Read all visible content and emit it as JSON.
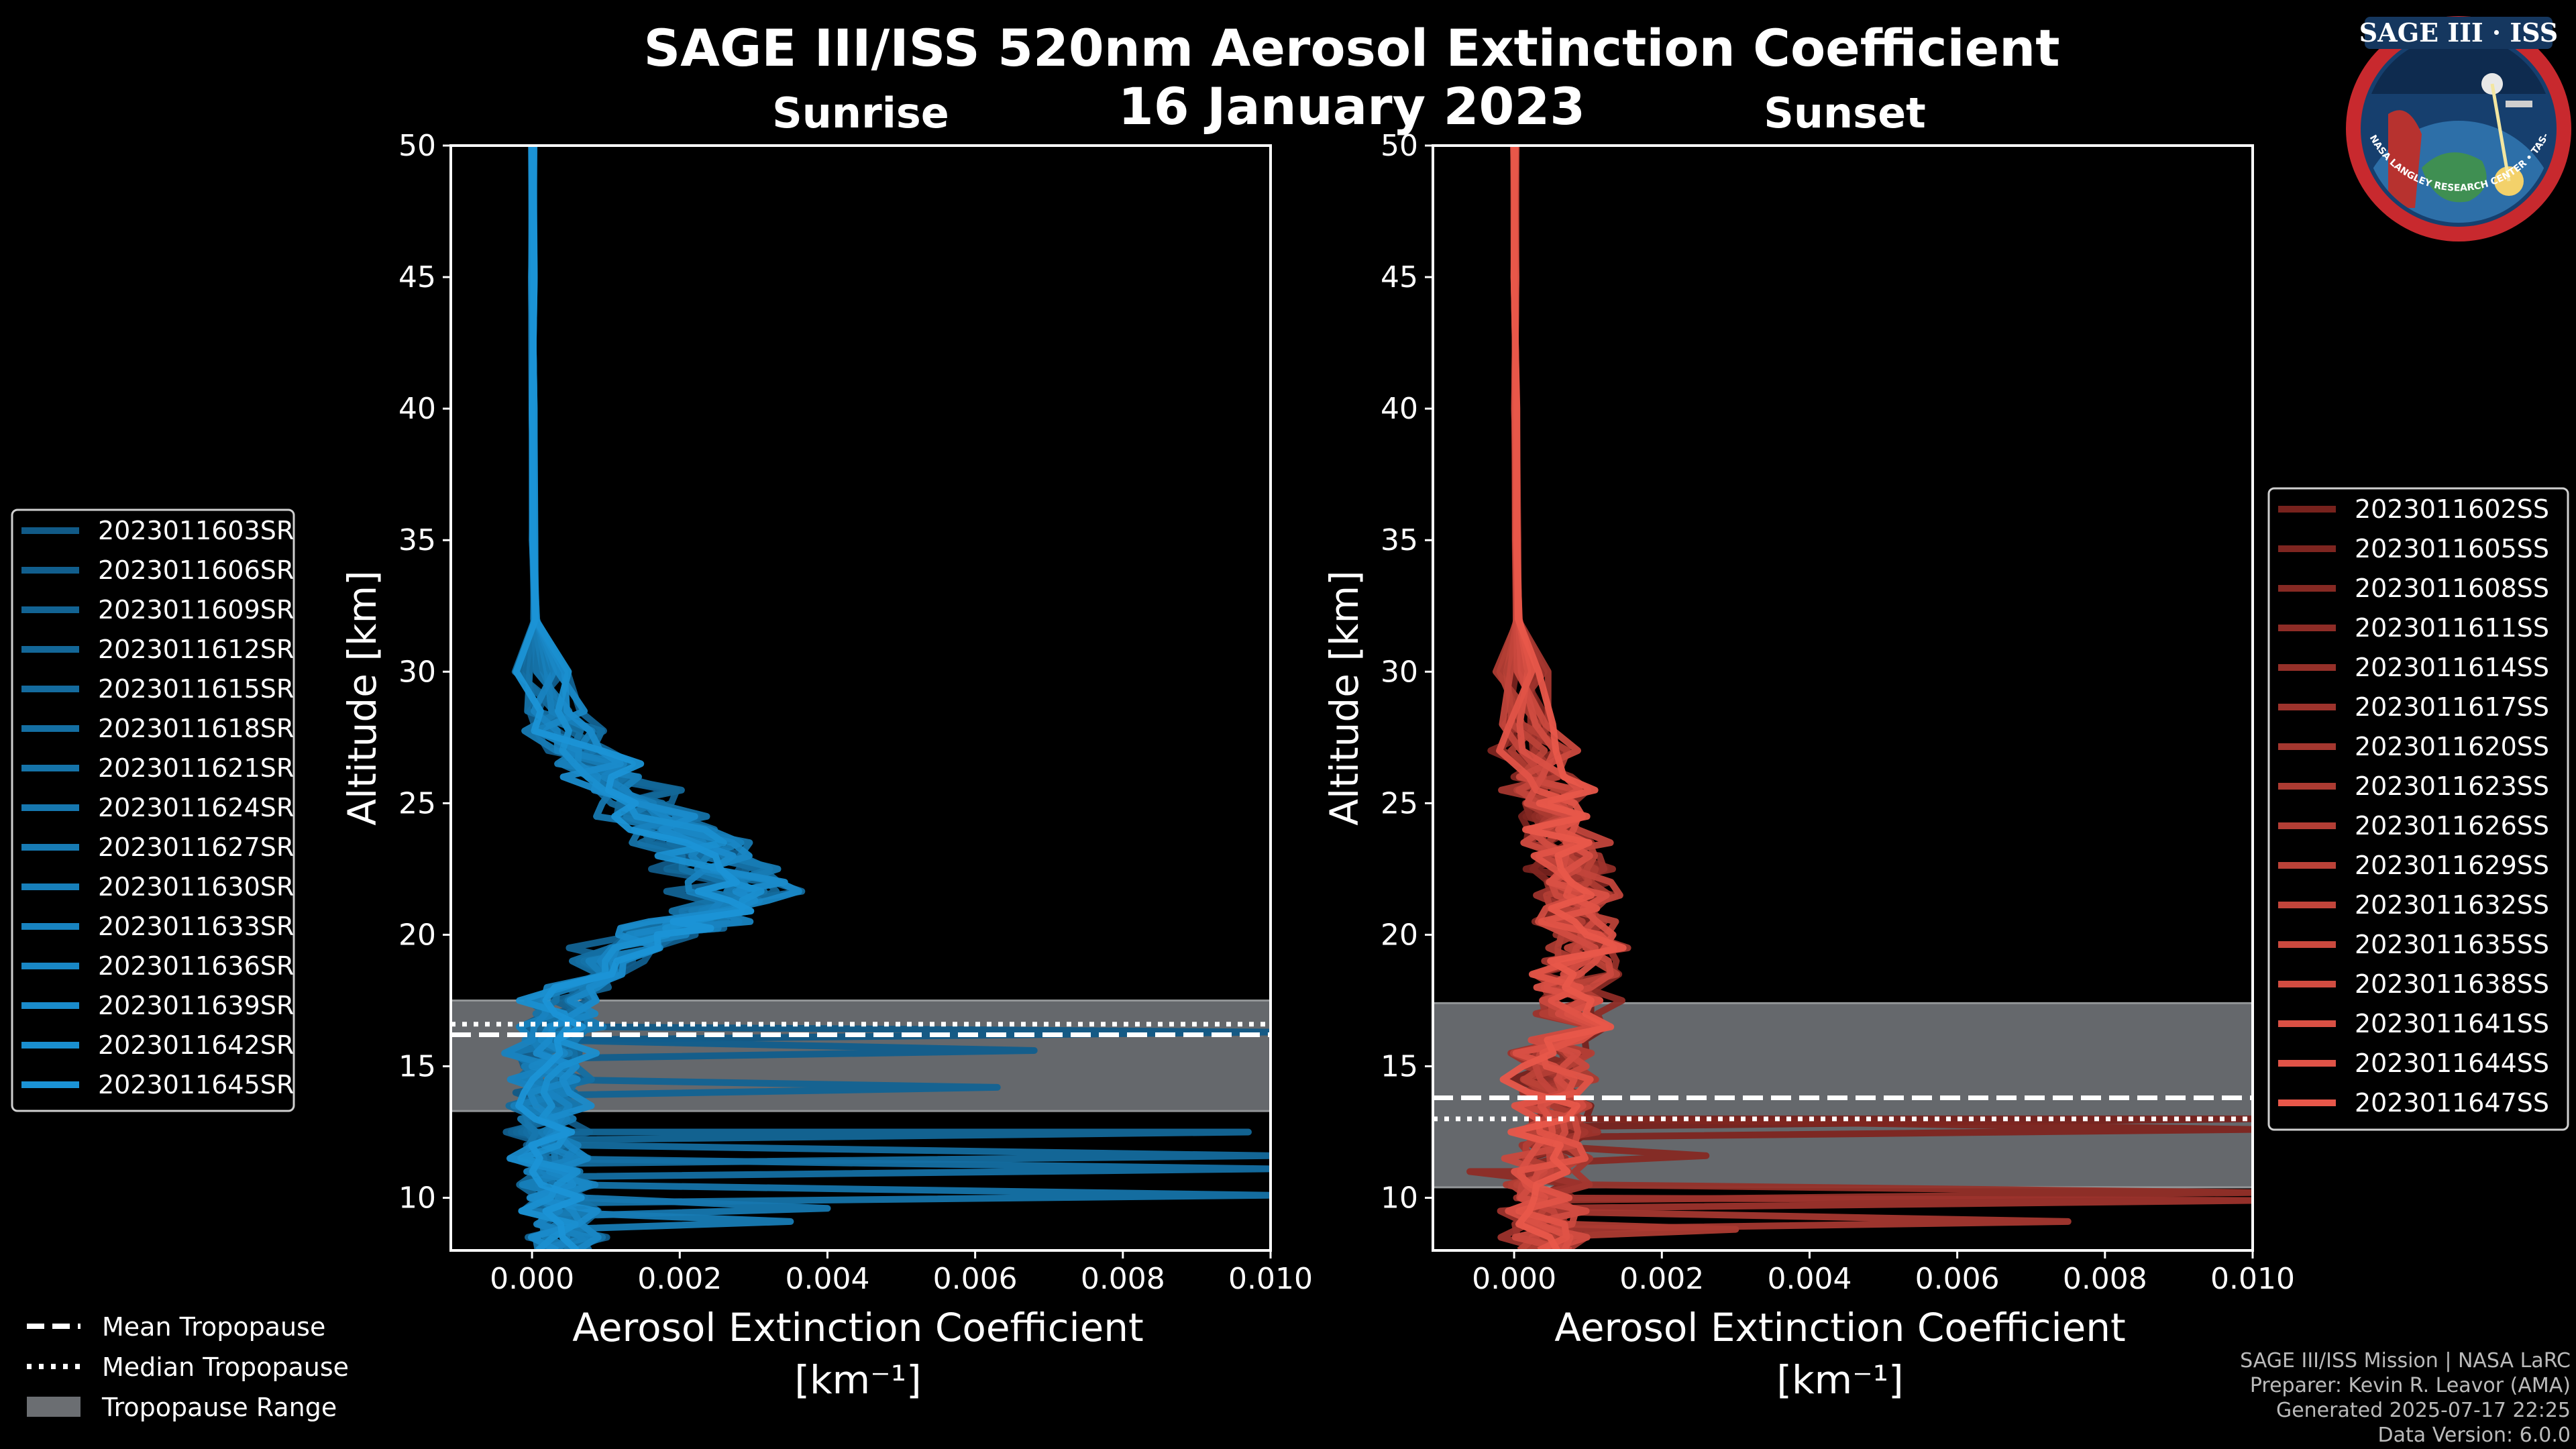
{
  "title_line1": "SAGE III/ISS 520nm Aerosol Extinction Coefficient",
  "title_line2": "16 January 2023",
  "logo": {
    "text": "SAGE III · ISS",
    "ring_text": "BALL • NASA LANGLEY RESEARCH CENTER • TAS-I • ESA"
  },
  "credits": [
    "SAGE III/ISS Mission | NASA LaRC",
    "Preparer: Kevin R. Leavor (AMA)",
    "Generated 2025-07-17 22:25",
    "Data Version: 6.0.0"
  ],
  "tropopause_legend": [
    {
      "label": "Mean Tropopause",
      "style": "dashed"
    },
    {
      "label": "Median Tropopause",
      "style": "dotted"
    },
    {
      "label": "Tropopause Range",
      "style": "band"
    }
  ],
  "chart_data": [
    {
      "type": "line",
      "title": "Sunrise",
      "xlabel": "Aerosol Extinction Coefficient",
      "xunit": "[km⁻¹]",
      "ylabel": "Altitude [km]",
      "xlim": [
        -0.0011,
        0.01
      ],
      "ylim": [
        8,
        50
      ],
      "xticks": [
        0.0,
        0.002,
        0.004,
        0.006,
        0.008,
        0.01
      ],
      "xtick_labels": [
        "0.000",
        "0.002",
        "0.004",
        "0.006",
        "0.008",
        "0.010"
      ],
      "yticks": [
        10,
        15,
        20,
        25,
        30,
        35,
        40,
        45,
        50
      ],
      "tropopause": {
        "mean": 16.2,
        "median": 16.6,
        "range": [
          13.3,
          17.5
        ]
      },
      "color_dark": "#0b3c5d",
      "color_light": "#1b93d6",
      "series": [
        {
          "name": "2023011603SR"
        },
        {
          "name": "2023011606SR"
        },
        {
          "name": "2023011609SR"
        },
        {
          "name": "2023011612SR"
        },
        {
          "name": "2023011615SR"
        },
        {
          "name": "2023011618SR"
        },
        {
          "name": "2023011621SR"
        },
        {
          "name": "2023011624SR"
        },
        {
          "name": "2023011627SR"
        },
        {
          "name": "2023011630SR"
        },
        {
          "name": "2023011633SR"
        },
        {
          "name": "2023011636SR"
        },
        {
          "name": "2023011639SR"
        },
        {
          "name": "2023011642SR"
        },
        {
          "name": "2023011645SR"
        }
      ],
      "profile": {
        "alt": [
          50,
          45,
          40,
          35,
          32,
          30,
          28.5,
          27,
          26,
          25,
          24,
          23,
          22,
          21.3,
          20.5,
          20,
          19,
          18,
          17,
          16,
          15,
          14,
          13,
          12,
          11,
          10,
          9,
          8
        ],
        "value": [
          1e-05,
          1e-05,
          1e-05,
          2e-05,
          4e-05,
          0.0001,
          0.0003,
          0.0006,
          0.001,
          0.0015,
          0.002,
          0.0025,
          0.0029,
          0.0028,
          0.0022,
          0.0016,
          0.001,
          0.0006,
          0.0004,
          0.0003,
          0.00025,
          0.0002,
          0.00022,
          0.00025,
          0.0003,
          0.00035,
          0.0004,
          0.0004
        ]
      },
      "spikes": [
        {
          "alt": 16.3,
          "value": 0.01
        },
        {
          "alt": 15.6,
          "value": 0.0068
        },
        {
          "alt": 14.2,
          "value": 0.0063
        },
        {
          "alt": 12.5,
          "value": 0.0097
        },
        {
          "alt": 11.6,
          "value": 0.01
        },
        {
          "alt": 11.1,
          "value": 0.01
        },
        {
          "alt": 10.1,
          "value": 0.01
        },
        {
          "alt": 9.6,
          "value": 0.004
        },
        {
          "alt": 9.1,
          "value": 0.0035
        }
      ]
    },
    {
      "type": "line",
      "title": "Sunset",
      "xlabel": "Aerosol Extinction Coefficient",
      "xunit": "[km⁻¹]",
      "ylabel": "Altitude [km]",
      "xlim": [
        -0.0011,
        0.01
      ],
      "ylim": [
        8,
        50
      ],
      "xticks": [
        0.0,
        0.002,
        0.004,
        0.006,
        0.008,
        0.01
      ],
      "xtick_labels": [
        "0.000",
        "0.002",
        "0.004",
        "0.006",
        "0.008",
        "0.010"
      ],
      "yticks": [
        10,
        15,
        20,
        25,
        30,
        35,
        40,
        45,
        50
      ],
      "tropopause": {
        "mean": 13.8,
        "median": 13.0,
        "range": [
          10.4,
          17.4
        ]
      },
      "color_dark": "#3a0505",
      "color_light": "#e8574a",
      "series": [
        {
          "name": "2023011602SS"
        },
        {
          "name": "2023011605SS"
        },
        {
          "name": "2023011608SS"
        },
        {
          "name": "2023011611SS"
        },
        {
          "name": "2023011614SS"
        },
        {
          "name": "2023011617SS"
        },
        {
          "name": "2023011620SS"
        },
        {
          "name": "2023011623SS"
        },
        {
          "name": "2023011626SS"
        },
        {
          "name": "2023011629SS"
        },
        {
          "name": "2023011632SS"
        },
        {
          "name": "2023011635SS"
        },
        {
          "name": "2023011638SS"
        },
        {
          "name": "2023011641SS"
        },
        {
          "name": "2023011644SS"
        },
        {
          "name": "2023011647SS"
        }
      ],
      "profile": {
        "alt": [
          50,
          45,
          40,
          35,
          32,
          30,
          28,
          26,
          25,
          24,
          23,
          22,
          21,
          20,
          19,
          18,
          17,
          16,
          15,
          14,
          13,
          12,
          11,
          10,
          9,
          8
        ],
        "value": [
          1e-05,
          1e-05,
          2e-05,
          3e-05,
          5e-05,
          0.0001,
          0.0002,
          0.0004,
          0.0005,
          0.0006,
          0.0007,
          0.0008,
          0.0008,
          0.0009,
          0.0009,
          0.0008,
          0.0007,
          0.0006,
          0.0005,
          0.0005,
          0.0006,
          0.0005,
          0.0004,
          0.0004,
          0.0004,
          0.0005
        ]
      },
      "spikes": [
        {
          "alt": 13.0,
          "value": 0.01
        },
        {
          "alt": 12.6,
          "value": 0.01
        },
        {
          "alt": 11.6,
          "value": 0.0026
        },
        {
          "alt": 11.0,
          "value": -0.0006
        },
        {
          "alt": 10.2,
          "value": 0.01
        },
        {
          "alt": 9.9,
          "value": 0.01
        },
        {
          "alt": 9.1,
          "value": 0.0075
        },
        {
          "alt": 8.8,
          "value": 0.003
        }
      ]
    }
  ]
}
